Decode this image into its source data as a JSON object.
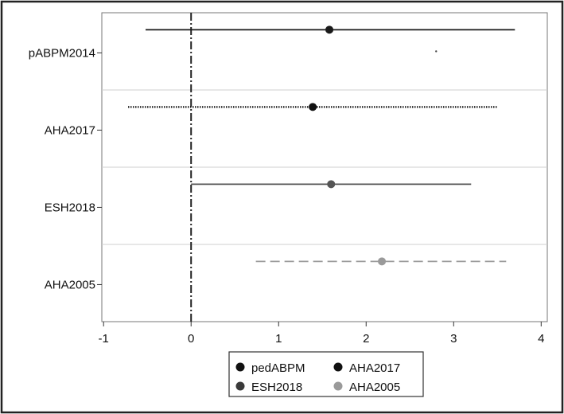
{
  "chart_data": {
    "type": "scatter",
    "subtype": "forest-plot",
    "title": "",
    "xlabel": "",
    "ylabel": "",
    "xlim": [
      -1.02,
      4.07
    ],
    "xticks": [
      -1,
      0,
      1,
      2,
      3,
      4
    ],
    "xtick_labels": [
      "-1",
      "0",
      "1",
      "2",
      "3",
      "4"
    ],
    "reference_line_x": 0,
    "categories": [
      "pABPM2014",
      "AHA2017",
      "ESH2018",
      "AHA2005"
    ],
    "series": [
      {
        "name": "pedABPM",
        "row": 0,
        "estimate": 1.58,
        "ci_low": -0.52,
        "ci_high": 3.7,
        "line_style": "solid",
        "color": "#1a1a1a"
      },
      {
        "name": "AHA2017",
        "row": 1,
        "estimate": 1.39,
        "ci_low": -0.72,
        "ci_high": 3.5,
        "line_style": "dotted",
        "color": "#111111"
      },
      {
        "name": "ESH2018",
        "row": 2,
        "estimate": 1.6,
        "ci_low": 0.0,
        "ci_high": 3.2,
        "line_style": "solid",
        "color": "#555555"
      },
      {
        "name": "AHA2005",
        "row": 3,
        "estimate": 2.18,
        "ci_low": 0.74,
        "ci_high": 3.6,
        "line_style": "dashed",
        "color": "#9a9a9a"
      }
    ],
    "stray_marks": [
      {
        "row": 0,
        "x": 2.8
      }
    ],
    "legend": {
      "placement": "bottom-center",
      "entries": [
        {
          "label": "pedABPM",
          "color": "#111111"
        },
        {
          "label": "AHA2017",
          "color": "#111111"
        },
        {
          "label": "ESH2018",
          "color": "#3a3a3a"
        },
        {
          "label": "AHA2005",
          "color": "#9a9a9a"
        }
      ]
    },
    "grid": "horizontal separators between rows"
  }
}
